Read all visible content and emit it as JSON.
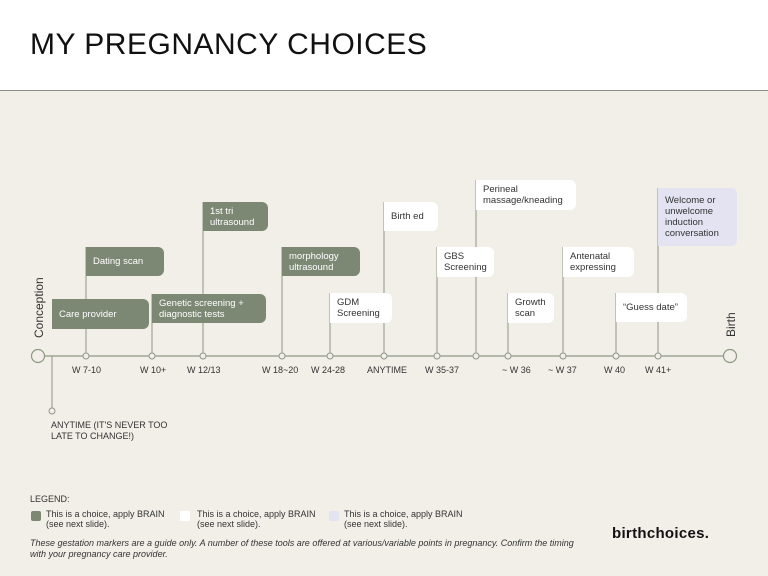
{
  "title": "MY PREGNANCY CHOICES",
  "start_label": "Conception",
  "end_label": "Birth",
  "ticks": [
    "W 7-10",
    "W 10+",
    "W 12/13",
    "W 18~20",
    "W 24-28",
    "ANYTIME",
    "W 35-37",
    "~ W 36",
    "~ W 37",
    "W 40",
    "W 41+"
  ],
  "anytime_note": "ANYTIME (IT'S NEVER TOO LATE TO CHANGE!)",
  "boxes": {
    "care_provider": "Care provider",
    "dating_scan": "Dating scan",
    "genetic_screening": "Genetic screening + diagnostic tests",
    "first_tri": "1st tri ultrasound",
    "morphology": "morphology ultrasound",
    "gdm": "GDM Screening",
    "birth_ed": "Birth ed",
    "gbs": "GBS Screening",
    "perineal": "Perineal massage/kneading",
    "growth_scan": "Growth scan",
    "antenatal": "Antenatal expressing",
    "guess_date": "“Guess date”",
    "induction": "Welcome or unwelcome induction conversation"
  },
  "legend": {
    "title": "LEGEND:",
    "items": [
      {
        "text": "This is a choice, apply BRAIN (see next slide).",
        "color": "#7d8874"
      },
      {
        "text": "This is a choice, apply BRAIN (see next slide).",
        "color": "#ffffff"
      },
      {
        "text": "This is a choice, apply BRAIN (see next slide).",
        "color": "#e3e3f2"
      }
    ]
  },
  "footnote": "These gestation markers are a guide only. A number of these tools are offered at various/variable points in pregnancy. Confirm the timing with your pregnancy care provider.",
  "logo": "birthchoices."
}
